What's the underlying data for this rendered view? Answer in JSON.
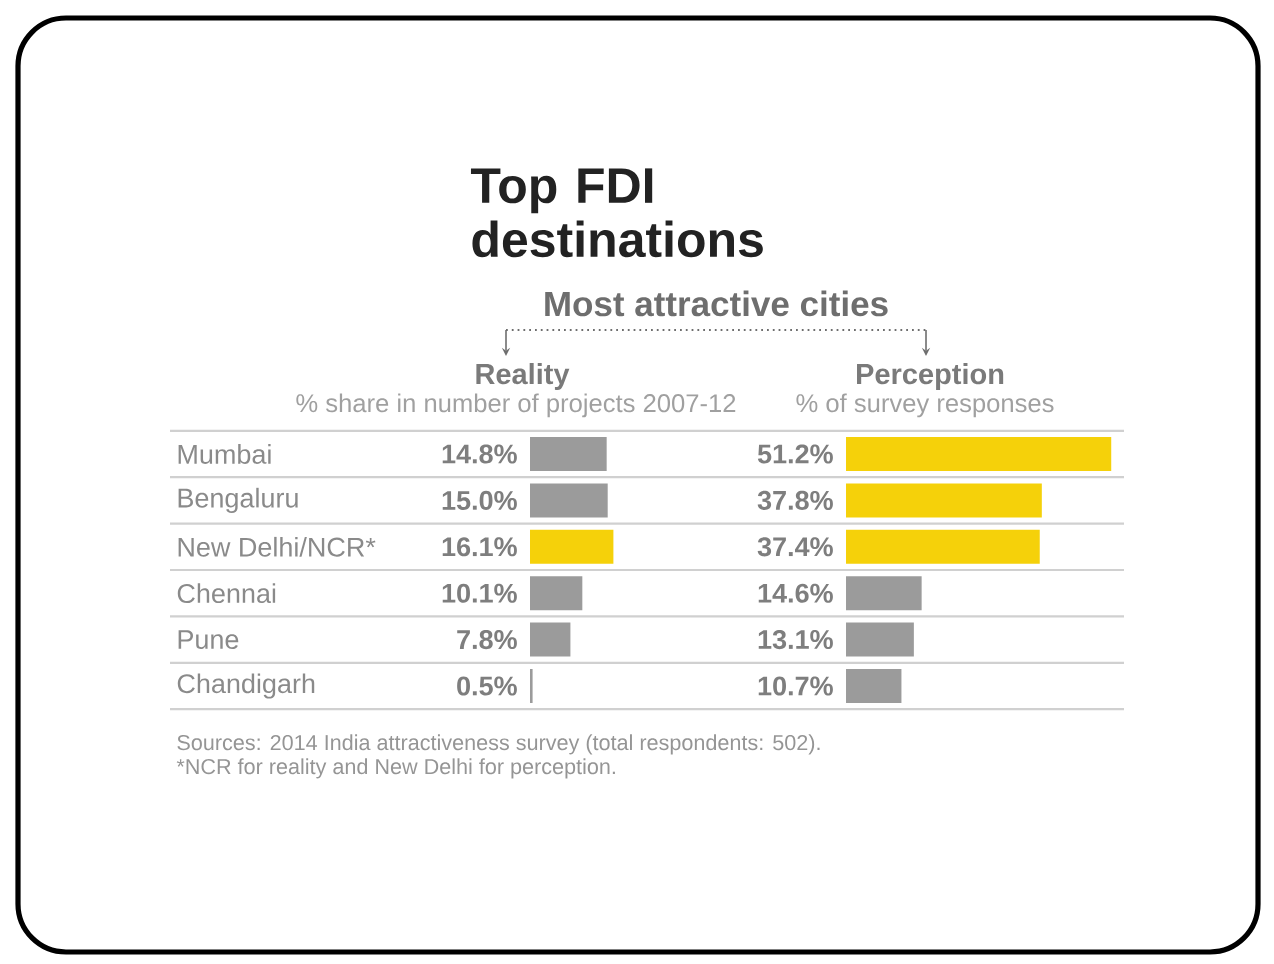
{
  "chart_data": [
    {
      "type": "bar",
      "orientation": "horizontal",
      "title": "Reality",
      "subtitle": "% share in number of projects 2007-12",
      "categories": [
        "Mumbai",
        "Bengaluru",
        "New Delhi/NCR*",
        "Chennai",
        "Pune",
        "Chandigarh"
      ],
      "values": [
        14.8,
        15.0,
        16.1,
        10.1,
        7.8,
        0.5
      ],
      "value_labels": [
        "14.8%",
        "15.0%",
        "16.1%",
        "10.1%",
        "7.8%",
        "0.5%"
      ],
      "colors": [
        "#9b9b9b",
        "#9b9b9b",
        "#f5d10a",
        "#9b9b9b",
        "#9b9b9b",
        "#9b9b9b"
      ],
      "tick_labels": "y",
      "annotations": [
        "Top FDI destinations",
        "Most attractive cities",
        "Sources: 2014 India attractiveness survey (total respondents: 502).",
        "*NCR for reality and New Delhi for perception."
      ]
    },
    {
      "type": "bar",
      "orientation": "horizontal",
      "title": "Perception",
      "subtitle": "% of survey responses",
      "categories": [
        null,
        null,
        null,
        null,
        null,
        null
      ],
      "values": [
        51.2,
        37.8,
        37.4,
        14.6,
        13.1,
        10.7
      ],
      "value_labels": [
        "51.2%",
        "37.8%",
        "37.4%",
        "14.6%",
        "13.1%",
        "10.7%"
      ],
      "colors": [
        "#f5d10a",
        "#f5d10a",
        "#f5d10a",
        "#9b9b9b",
        "#9b9b9b",
        "#9b9b9b"
      ]
    }
  ]
}
